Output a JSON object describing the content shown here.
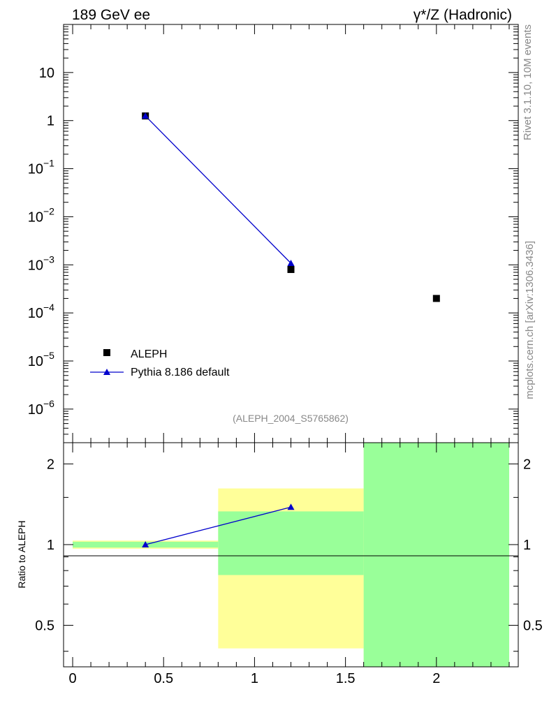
{
  "header": {
    "left": "189 GeV ee",
    "right": "γ*/Z (Hadronic)"
  },
  "side": {
    "rivet": "Rivet 3.1.10,  10M events",
    "mcplots": "mcplots.cern.ch [arXiv:1306.3436]"
  },
  "analysis_id": "(ALEPH_2004_S5765862)",
  "chart_data": [
    {
      "type": "scatter",
      "yscale": "log",
      "xlim": [
        -0.05,
        2.45
      ],
      "ylim": [
        2e-07,
        100
      ],
      "yticks": [
        {
          "value": 10,
          "base": "10",
          "exp": ""
        },
        {
          "value": 1,
          "base": "1",
          "exp": ""
        },
        {
          "value": 0.1,
          "base": "10",
          "exp": "−1"
        },
        {
          "value": 0.01,
          "base": "10",
          "exp": "−2"
        },
        {
          "value": 0.001,
          "base": "10",
          "exp": "−3"
        },
        {
          "value": 0.0001,
          "base": "10",
          "exp": "−4"
        },
        {
          "value": 1e-05,
          "base": "10",
          "exp": "−5"
        },
        {
          "value": 1e-06,
          "base": "10",
          "exp": "−6"
        }
      ],
      "legend_position": "bottom-left",
      "series": [
        {
          "name": "ALEPH",
          "marker": "square",
          "color": "#000000",
          "x": [
            0.4,
            1.2,
            2.0
          ],
          "y": [
            1.25,
            0.0008,
            0.0002
          ]
        },
        {
          "name": "Pythia 8.186 default",
          "marker": "triangle",
          "color": "#0000cc",
          "x": [
            0.4,
            1.2
          ],
          "y": [
            1.25,
            0.00108
          ]
        }
      ]
    },
    {
      "type": "scatter",
      "ylabel": "Ratio to ALEPH",
      "yscale": "log",
      "xlim": [
        -0.05,
        2.45
      ],
      "ylim": [
        0.35,
        2.4
      ],
      "yticks": [
        {
          "value": 0.5,
          "label": "0.5"
        },
        {
          "value": 1,
          "label": "1"
        },
        {
          "value": 2,
          "label": "2"
        }
      ],
      "xticks": [
        {
          "value": 0,
          "label": "0"
        },
        {
          "value": 0.5,
          "label": "0.5"
        },
        {
          "value": 1,
          "label": "1"
        },
        {
          "value": 1.5,
          "label": "1.5"
        },
        {
          "value": 2,
          "label": "2"
        }
      ],
      "bands": [
        {
          "x0": 0.0,
          "x1": 0.8,
          "yellow": [
            0.965,
            1.035
          ],
          "green": [
            0.975,
            1.025
          ]
        },
        {
          "x0": 0.8,
          "x1": 1.6,
          "yellow": [
            0.41,
            1.62
          ],
          "green": [
            0.77,
            1.33
          ]
        },
        {
          "x0": 1.6,
          "x1": 2.4,
          "yellow": [
            0.35,
            2.4
          ],
          "green": [
            0.35,
            2.4
          ]
        }
      ],
      "series": [
        {
          "name": "Pythia 8.186 default",
          "color": "#0000cc",
          "x": [
            0.4,
            1.2
          ],
          "y": [
            1.0,
            1.38
          ]
        }
      ]
    }
  ],
  "colors": {
    "band_yellow": "#ffff99",
    "band_green": "#99ff99",
    "mc": "#0000cc",
    "data": "#000000"
  }
}
